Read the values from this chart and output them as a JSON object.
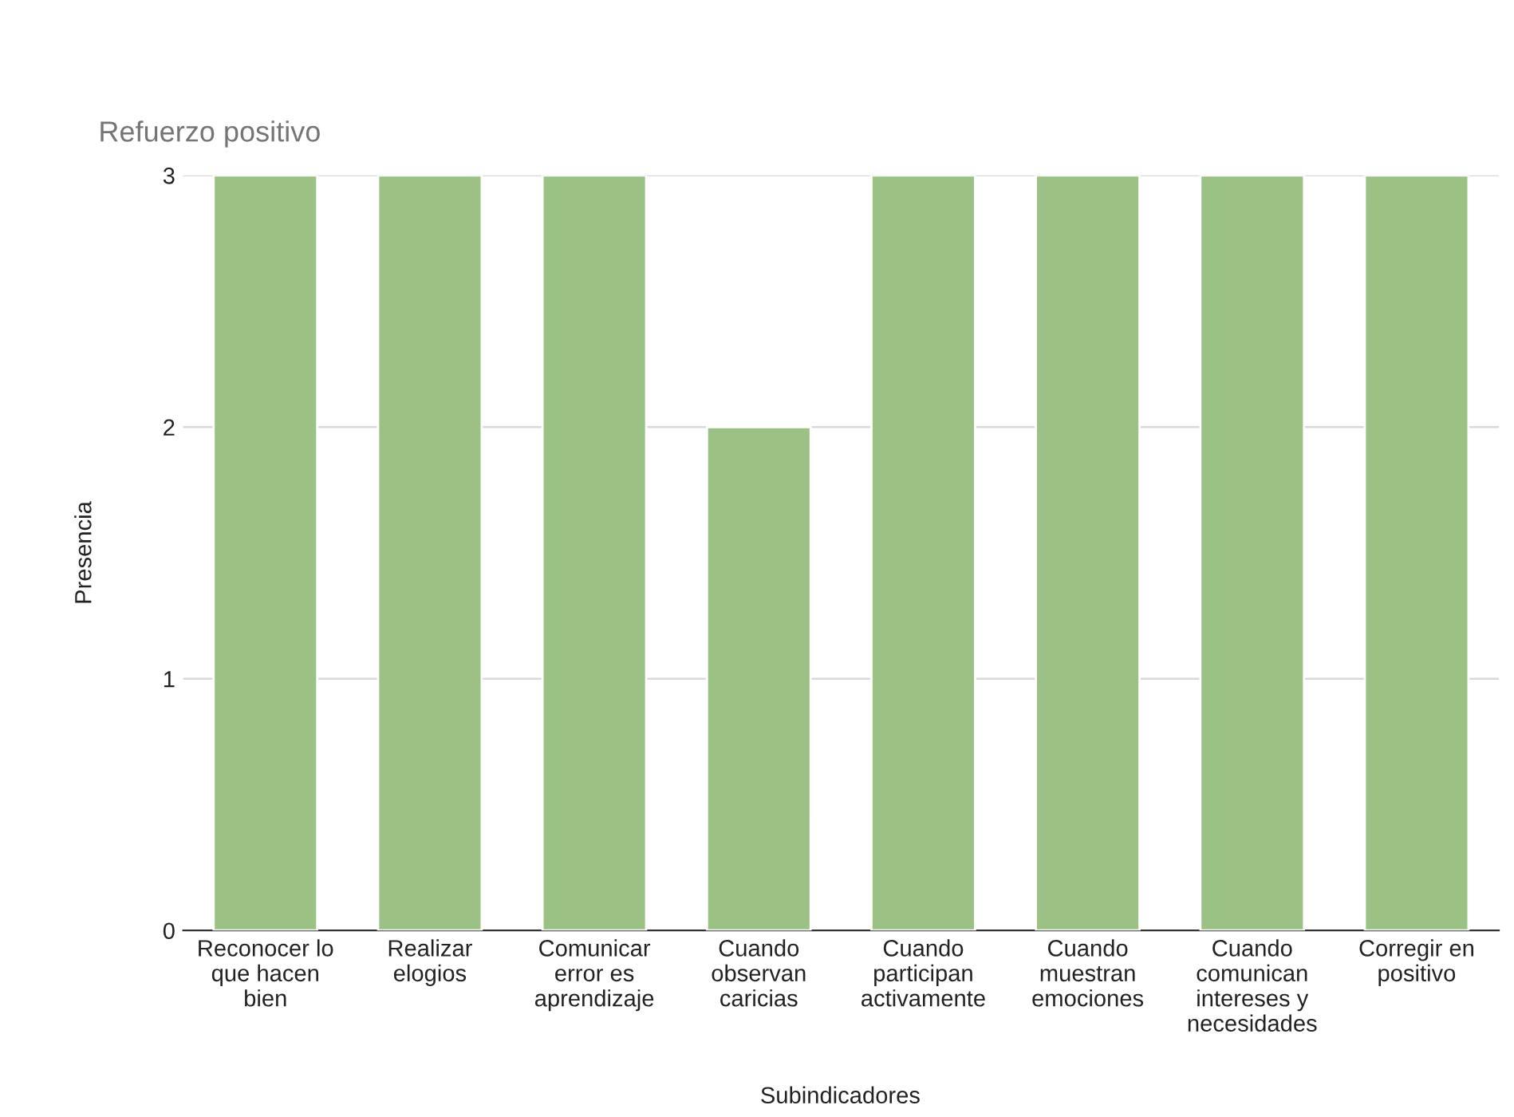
{
  "chart_data": {
    "type": "bar",
    "title": "Refuerzo positivo",
    "xlabel": "Subindicadores",
    "ylabel": "Presencia",
    "categories": [
      "Reconocer lo\nque hacen\nbien",
      "Realizar\nelogios",
      "Comunicar\nerror es\naprendizaje",
      "Cuando\nobservan\ncaricias",
      "Cuando\nparticipan\nactivamente",
      "Cuando\nmuestran\nemociones",
      "Cuando\ncomunican\nintereses y\nnecesidades",
      "Corregir en\npositivo"
    ],
    "values": [
      3,
      3,
      3,
      2,
      3,
      3,
      3,
      3
    ],
    "color": "#9bc184",
    "ylim": [
      0,
      3
    ],
    "yticks": [
      0,
      1,
      2,
      3
    ],
    "grid": "y",
    "legend": false
  }
}
